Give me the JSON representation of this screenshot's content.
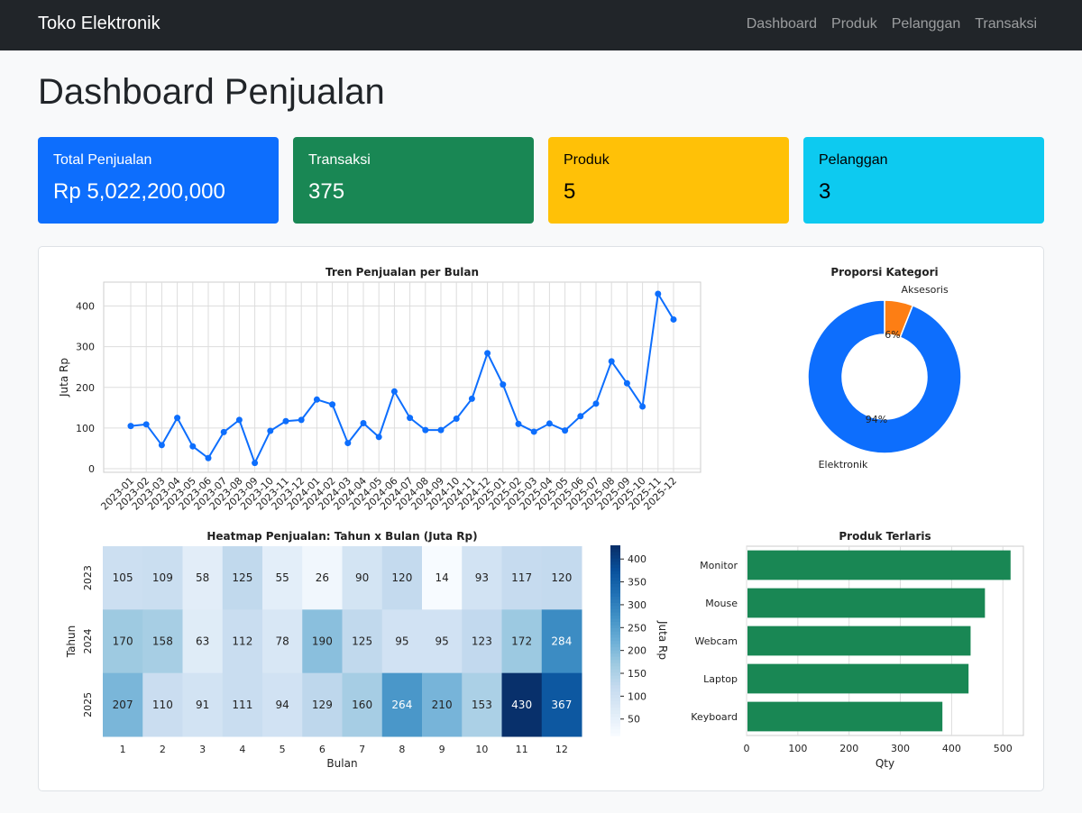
{
  "navbar": {
    "brand": "Toko Elektronik",
    "links": [
      "Dashboard",
      "Produk",
      "Pelanggan",
      "Transaksi"
    ]
  },
  "page": {
    "title": "Dashboard Penjualan"
  },
  "cards": [
    {
      "label": "Total Penjualan",
      "value": "Rp 5,022,200,000",
      "bg": "#0d6efd",
      "fg": "#ffffff"
    },
    {
      "label": "Transaksi",
      "value": "375",
      "bg": "#198754",
      "fg": "#ffffff"
    },
    {
      "label": "Produk",
      "value": "5",
      "bg": "#ffc107",
      "fg": "#000000"
    },
    {
      "label": "Pelanggan",
      "value": "3",
      "bg": "#0dcaf0",
      "fg": "#000000"
    }
  ],
  "chart_data": [
    {
      "type": "line",
      "title": "Tren Penjualan per Bulan",
      "ylabel": "Juta Rp",
      "xlabel": "",
      "ylim": [
        0,
        450
      ],
      "yticks": [
        0,
        100,
        200,
        300,
        400
      ],
      "grid": true,
      "color": "#0d6efd",
      "x": [
        "2023-01",
        "2023-02",
        "2023-03",
        "2023-04",
        "2023-05",
        "2023-06",
        "2023-07",
        "2023-08",
        "2023-09",
        "2023-10",
        "2023-11",
        "2023-12",
        "2024-01",
        "2024-02",
        "2024-03",
        "2024-04",
        "2024-05",
        "2024-06",
        "2024-07",
        "2024-08",
        "2024-09",
        "2024-10",
        "2024-11",
        "2024-12",
        "2025-01",
        "2025-02",
        "2025-03",
        "2025-04",
        "2025-05",
        "2025-06",
        "2025-07",
        "2025-08",
        "2025-09",
        "2025-10",
        "2025-11",
        "2025-12"
      ],
      "values": [
        105,
        109,
        58,
        125,
        55,
        26,
        90,
        120,
        14,
        93,
        117,
        120,
        170,
        158,
        63,
        112,
        78,
        190,
        125,
        95,
        95,
        123,
        172,
        284,
        207,
        110,
        91,
        111,
        94,
        129,
        160,
        264,
        210,
        153,
        430,
        367
      ]
    },
    {
      "type": "pie",
      "title": "Proporsi Kategori",
      "labels": [
        "Aksesoris",
        "Elektronik"
      ],
      "values": [
        6,
        94
      ],
      "value_labels": [
        "6%",
        "94%"
      ],
      "colors": [
        "#fd7e14",
        "#0d6efd"
      ]
    },
    {
      "type": "heatmap",
      "title": "Heatmap Penjualan: Tahun x Bulan (Juta Rp)",
      "xlabel": "Bulan",
      "ylabel": "Tahun",
      "colorbar_label": "Juta Rp",
      "colorbar_ticks": [
        50,
        100,
        150,
        200,
        250,
        300,
        350,
        400
      ],
      "vmin": 14,
      "vmax": 430,
      "x": [
        "1",
        "2",
        "3",
        "4",
        "5",
        "6",
        "7",
        "8",
        "9",
        "10",
        "11",
        "12"
      ],
      "y": [
        "2023",
        "2024",
        "2025"
      ],
      "values": [
        [
          105,
          109,
          58,
          125,
          55,
          26,
          90,
          120,
          14,
          93,
          117,
          120
        ],
        [
          170,
          158,
          63,
          112,
          78,
          190,
          125,
          95,
          95,
          123,
          172,
          284
        ],
        [
          207,
          110,
          91,
          111,
          94,
          129,
          160,
          264,
          210,
          153,
          430,
          367
        ]
      ]
    },
    {
      "type": "bar",
      "orientation": "horizontal",
      "title": "Produk Terlaris",
      "xlabel": "Qty",
      "ylabel": "",
      "xlim": [
        0,
        540
      ],
      "xticks": [
        0,
        100,
        200,
        300,
        400,
        500
      ],
      "categories": [
        "Monitor",
        "Mouse",
        "Webcam",
        "Laptop",
        "Keyboard"
      ],
      "values": [
        515,
        465,
        437,
        433,
        382
      ],
      "color": "#198754",
      "grid": true
    }
  ]
}
